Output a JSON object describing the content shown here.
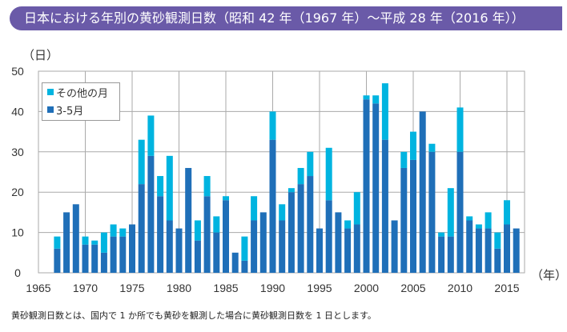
{
  "title": "日本における年別の黄砂観測日数（昭和 42 年（1967 年）～平成 28 年（2016 年））",
  "note": "黄砂観測日数とは、国内で 1 か所でも黄砂を観測した場合に黄砂観測日数を 1 日とします。",
  "chart_data": {
    "type": "bar",
    "stacked": true,
    "ylabel": "（日）",
    "xlabel": "（年）",
    "ylim": [
      0,
      50
    ],
    "yticks": [
      "0",
      "10",
      "20",
      "30",
      "40",
      "50"
    ],
    "xticks": [
      "1965",
      "1970",
      "1975",
      "1980",
      "1985",
      "1990",
      "1995",
      "2000",
      "2005",
      "2010",
      "2015"
    ],
    "grid": true,
    "legend_position": "top-left",
    "categories": [
      1967,
      1968,
      1969,
      1970,
      1971,
      1972,
      1973,
      1974,
      1975,
      1976,
      1977,
      1978,
      1979,
      1980,
      1981,
      1982,
      1983,
      1984,
      1985,
      1986,
      1987,
      1988,
      1989,
      1990,
      1991,
      1992,
      1993,
      1994,
      1995,
      1996,
      1997,
      1998,
      1999,
      2000,
      2001,
      2002,
      2003,
      2004,
      2005,
      2006,
      2007,
      2008,
      2009,
      2010,
      2011,
      2012,
      2013,
      2014,
      2015,
      2016
    ],
    "series": [
      {
        "name": "3-5月",
        "color": "#1f6fb8",
        "values": [
          6,
          15,
          17,
          7,
          7,
          5,
          9,
          9,
          12,
          22,
          29,
          19,
          13,
          11,
          26,
          8,
          19,
          10,
          18,
          5,
          3,
          13,
          15,
          33,
          13,
          20,
          22,
          24,
          11,
          18,
          15,
          11,
          12,
          43,
          42,
          33,
          13,
          26,
          28,
          40,
          30,
          9,
          9,
          30,
          13,
          11,
          11,
          6,
          12,
          11
        ]
      },
      {
        "name": "その他の月",
        "color": "#00b4e0",
        "values": [
          3,
          0,
          0,
          2,
          1,
          5,
          3,
          2,
          0,
          11,
          10,
          5,
          16,
          0,
          0,
          5,
          5,
          4,
          1,
          0,
          6,
          6,
          0,
          7,
          4,
          1,
          4,
          6,
          0,
          13,
          0,
          2,
          8,
          1,
          2,
          14,
          0,
          4,
          7,
          0,
          2,
          1,
          12,
          11,
          1,
          1,
          4,
          4,
          6,
          0
        ]
      }
    ]
  }
}
